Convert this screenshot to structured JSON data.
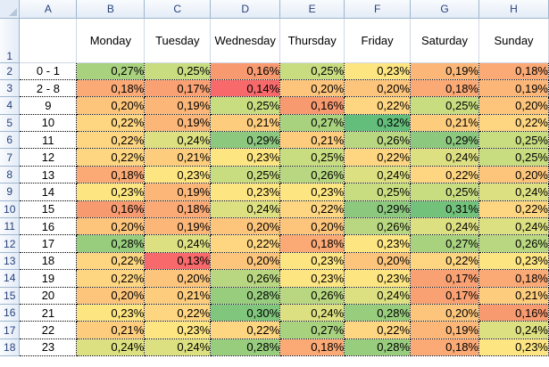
{
  "sheet": {
    "column_letters": [
      "A",
      "B",
      "C",
      "D",
      "E",
      "F",
      "G",
      "H"
    ],
    "header_row": {
      "row_number": "1",
      "labels": [
        "",
        "Monday",
        "Tuesday",
        "Wednesday",
        "Thursday",
        "Friday",
        "Saturday",
        "Sunday"
      ]
    },
    "rows": [
      {
        "row_number": "2",
        "label": "0 - 1",
        "values": [
          "0,27%",
          "0,25%",
          "0,16%",
          "0,25%",
          "0,23%",
          "0,19%",
          "0,18%"
        ],
        "colors": [
          "#a9d27f",
          "#c8dc80",
          "#f89a6f",
          "#c8dc80",
          "#fde582",
          "#fcb778",
          "#fba975"
        ]
      },
      {
        "row_number": "3",
        "label": "2 - 8",
        "values": [
          "0,18%",
          "0,17%",
          "0,14%",
          "0,20%",
          "0,20%",
          "0,18%",
          "0,19%"
        ],
        "colors": [
          "#fba975",
          "#f9a172",
          "#f8696b",
          "#fdc57b",
          "#fdc57b",
          "#fba975",
          "#fcb778"
        ]
      },
      {
        "row_number": "4",
        "label": "9",
        "values": [
          "0,20%",
          "0,19%",
          "0,25%",
          "0,16%",
          "0,22%",
          "0,25%",
          "0,20%"
        ],
        "colors": [
          "#fdc57b",
          "#fcb778",
          "#c8dc80",
          "#f89a6f",
          "#fed580",
          "#c8dc80",
          "#fdc57b"
        ]
      },
      {
        "row_number": "5",
        "label": "10",
        "values": [
          "0,22%",
          "0,19%",
          "0,21%",
          "0,27%",
          "0,32%",
          "0,21%",
          "0,22%"
        ],
        "colors": [
          "#fed580",
          "#fcb778",
          "#fdcd7d",
          "#a9d27f",
          "#63be7b",
          "#fdcd7d",
          "#fed580"
        ]
      },
      {
        "row_number": "6",
        "label": "11",
        "values": [
          "0,22%",
          "0,24%",
          "0,29%",
          "0,21%",
          "0,26%",
          "0,29%",
          "0,25%"
        ],
        "colors": [
          "#fed580",
          "#dde081",
          "#8cc97e",
          "#fdcd7d",
          "#b8d780",
          "#8cc97e",
          "#c8dc80"
        ]
      },
      {
        "row_number": "7",
        "label": "12",
        "values": [
          "0,22%",
          "0,21%",
          "0,23%",
          "0,25%",
          "0,22%",
          "0,24%",
          "0,25%"
        ],
        "colors": [
          "#fed580",
          "#fdcd7d",
          "#fde582",
          "#c8dc80",
          "#fed580",
          "#dde081",
          "#c8dc80"
        ]
      },
      {
        "row_number": "8",
        "label": "13",
        "values": [
          "0,18%",
          "0,23%",
          "0,25%",
          "0,26%",
          "0,24%",
          "0,22%",
          "0,20%"
        ],
        "colors": [
          "#fba975",
          "#fde582",
          "#c8dc80",
          "#b8d780",
          "#dde081",
          "#fed580",
          "#fdc57b"
        ]
      },
      {
        "row_number": "9",
        "label": "14",
        "values": [
          "0,23%",
          "0,19%",
          "0,23%",
          "0,23%",
          "0,25%",
          "0,25%",
          "0,24%"
        ],
        "colors": [
          "#fde582",
          "#fcb778",
          "#fde582",
          "#fde582",
          "#c8dc80",
          "#c8dc80",
          "#dde081"
        ]
      },
      {
        "row_number": "10",
        "label": "15",
        "values": [
          "0,16%",
          "0,18%",
          "0,24%",
          "0,22%",
          "0,29%",
          "0,31%",
          "0,22%"
        ],
        "colors": [
          "#f89a6f",
          "#fba975",
          "#dde081",
          "#fed580",
          "#8cc97e",
          "#73c27c",
          "#fed580"
        ]
      },
      {
        "row_number": "11",
        "label": "16",
        "values": [
          "0,20%",
          "0,19%",
          "0,20%",
          "0,20%",
          "0,26%",
          "0,24%",
          "0,24%"
        ],
        "colors": [
          "#fdc57b",
          "#fcb778",
          "#fdc57b",
          "#fdc57b",
          "#b8d780",
          "#dde081",
          "#dde081"
        ]
      },
      {
        "row_number": "12",
        "label": "17",
        "values": [
          "0,28%",
          "0,24%",
          "0,22%",
          "0,18%",
          "0,23%",
          "0,27%",
          "0,26%"
        ],
        "colors": [
          "#99cd7e",
          "#dde081",
          "#fed580",
          "#fba975",
          "#fde582",
          "#a9d27f",
          "#b8d780"
        ]
      },
      {
        "row_number": "13",
        "label": "18",
        "values": [
          "0,22%",
          "0,13%",
          "0,20%",
          "0,23%",
          "0,20%",
          "0,22%",
          "0,23%"
        ],
        "colors": [
          "#fed580",
          "#f8696b",
          "#fdc57b",
          "#fde582",
          "#fdc57b",
          "#fed580",
          "#fde582"
        ]
      },
      {
        "row_number": "14",
        "label": "19",
        "values": [
          "0,22%",
          "0,20%",
          "0,26%",
          "0,23%",
          "0,23%",
          "0,17%",
          "0,18%"
        ],
        "colors": [
          "#fed580",
          "#fdc57b",
          "#b8d780",
          "#fde582",
          "#fde582",
          "#f9a172",
          "#fba975"
        ]
      },
      {
        "row_number": "15",
        "label": "20",
        "values": [
          "0,20%",
          "0,21%",
          "0,28%",
          "0,26%",
          "0,24%",
          "0,17%",
          "0,21%"
        ],
        "colors": [
          "#fdc57b",
          "#fdcd7d",
          "#99cd7e",
          "#b8d780",
          "#dde081",
          "#f9a172",
          "#fdcd7d"
        ]
      },
      {
        "row_number": "16",
        "label": "21",
        "values": [
          "0,23%",
          "0,22%",
          "0,30%",
          "0,24%",
          "0,28%",
          "0,20%",
          "0,16%"
        ],
        "colors": [
          "#fde582",
          "#fed580",
          "#80c67d",
          "#dde081",
          "#99cd7e",
          "#fdc57b",
          "#f89a6f"
        ]
      },
      {
        "row_number": "17",
        "label": "22",
        "values": [
          "0,21%",
          "0,23%",
          "0,22%",
          "0,27%",
          "0,22%",
          "0,19%",
          "0,24%"
        ],
        "colors": [
          "#fdcd7d",
          "#fde582",
          "#fed580",
          "#a9d27f",
          "#fed580",
          "#fcb778",
          "#dde081"
        ]
      },
      {
        "row_number": "18",
        "label": "23",
        "values": [
          "0,24%",
          "0,24%",
          "0,28%",
          "0,18%",
          "0,28%",
          "0,18%",
          "0,23%"
        ],
        "colors": [
          "#dde081",
          "#dde081",
          "#99cd7e",
          "#fba975",
          "#99cd7e",
          "#fba975",
          "#fde582"
        ]
      }
    ]
  }
}
